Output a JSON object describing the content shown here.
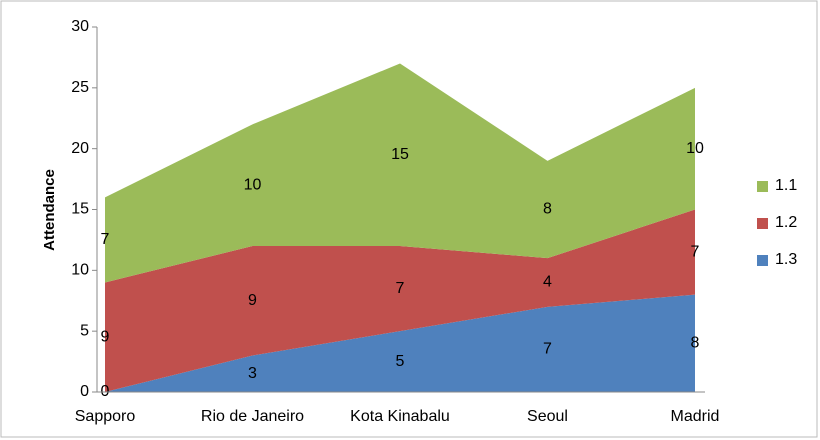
{
  "chart_data": {
    "type": "stacked_area",
    "y_label": "Attendance",
    "categories": [
      "Sapporo",
      "Rio de Janeiro",
      "Kota Kinabalu",
      "Seoul",
      "Madrid"
    ],
    "series": [
      {
        "name": "1.1",
        "color": "#9bbb59",
        "values": [
          7,
          10,
          15,
          8,
          10
        ]
      },
      {
        "name": "1.2",
        "color": "#c0504d",
        "values": [
          9,
          9,
          7,
          4,
          7
        ]
      },
      {
        "name": "1.3",
        "color": "#4f81bd",
        "values": [
          0,
          3,
          5,
          7,
          8
        ]
      }
    ],
    "ylim": [
      0,
      30
    ],
    "yticks": [
      0,
      5,
      10,
      15,
      20,
      25,
      30
    ],
    "grid": false,
    "legend": "right"
  }
}
